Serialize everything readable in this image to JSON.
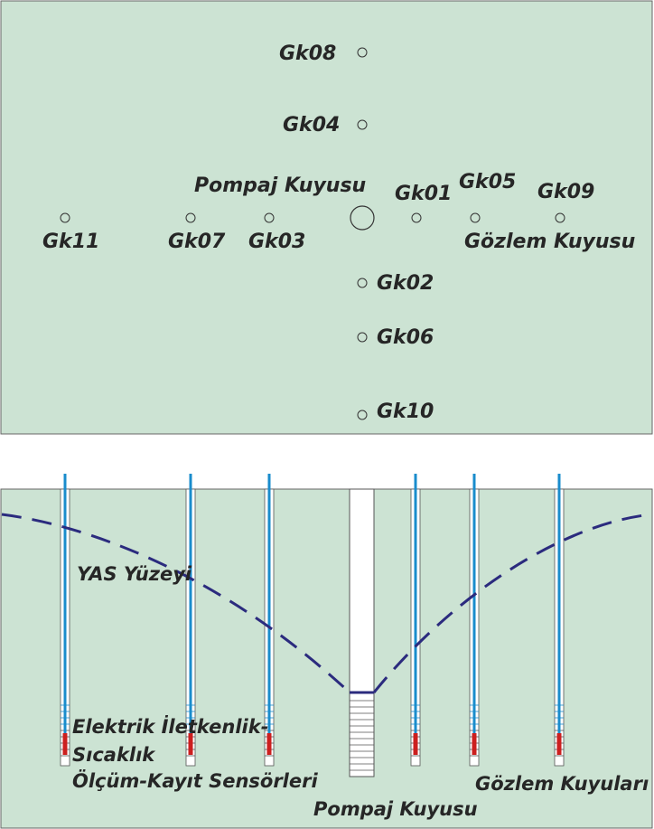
{
  "colors": {
    "background": "#cce3d3",
    "border": "#666666",
    "text": "#262626",
    "water_table": "#2b2b7e",
    "sensor_cable": "#1a8ccc",
    "sensor": "#cc1f1f",
    "casing": "#ffffff"
  },
  "plan_view": {
    "wells": [
      {
        "id": "Gk08",
        "label": "Gk08"
      },
      {
        "id": "Gk04",
        "label": "Gk04"
      },
      {
        "id": "Gk01",
        "label": "Gk01"
      },
      {
        "id": "Gk05",
        "label": "Gk05"
      },
      {
        "id": "Gk09",
        "label": "Gk09"
      },
      {
        "id": "Gk11",
        "label": "Gk11"
      },
      {
        "id": "Gk07",
        "label": "Gk07"
      },
      {
        "id": "Gk03",
        "label": "Gk03"
      },
      {
        "id": "Gk02",
        "label": "Gk02"
      },
      {
        "id": "Gk06",
        "label": "Gk06"
      },
      {
        "id": "Gk10",
        "label": "Gk10"
      }
    ],
    "pumping_well_label": "Pompaj Kuyusu",
    "observation_well_label": "Gözlem Kuyusu"
  },
  "section_view": {
    "water_table_label": "YAS Yüzeyi",
    "sensor_label_line1": "Elektrik İletkenlik-",
    "sensor_label_line2": "Sıcaklık",
    "sensor_label_line3": "Ölçüm-Kayıt Sensörleri",
    "observation_wells_label": "Gözlem Kuyuları",
    "pumping_well_label": "Pompaj Kuyusu"
  }
}
